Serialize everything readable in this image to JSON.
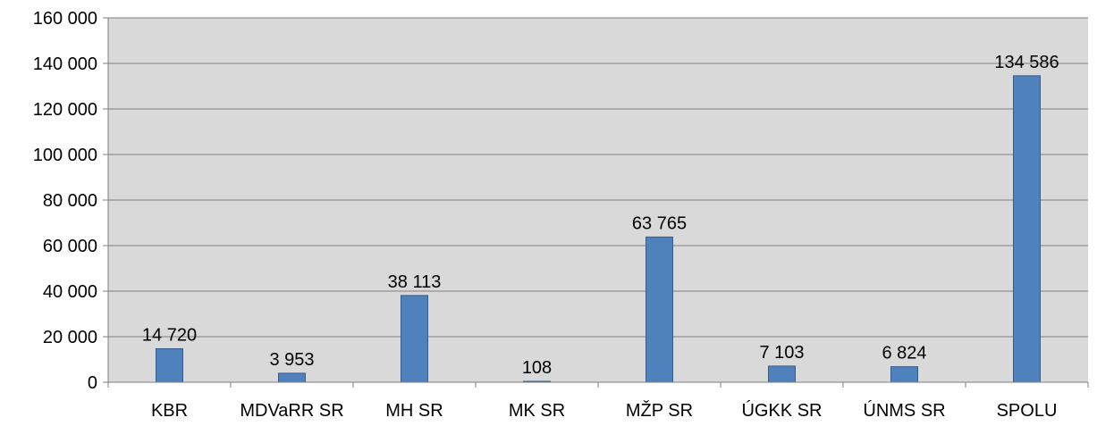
{
  "chart_data": {
    "type": "bar",
    "categories": [
      "KBR",
      "MDVaRR SR",
      "MH SR",
      "MK SR",
      "MŽP SR",
      "ÚGKK SR",
      "ÚNMS SR",
      "SPOLU"
    ],
    "values": [
      14720,
      3953,
      38113,
      108,
      63765,
      7103,
      6824,
      134586
    ],
    "data_labels": [
      "14 720",
      "3 953",
      "38 113",
      "108",
      "63 765",
      "7 103",
      "6 824",
      "134 586"
    ],
    "title": "",
    "xlabel": "",
    "ylabel": "",
    "ylim": [
      0,
      160000
    ],
    "yticks": [
      0,
      20000,
      40000,
      60000,
      80000,
      100000,
      120000,
      140000,
      160000
    ],
    "ytick_labels": [
      "0",
      "20 000",
      "40 000",
      "60 000",
      "80 000",
      "100 000",
      "120 000",
      "140 000",
      "160 000"
    ],
    "grid": true,
    "legend": "none",
    "colors": {
      "bar_fill": "#4f81bd",
      "bar_stroke": "#385d8a",
      "plot_background": "#d9d9d9",
      "gridline": "#7f7f7f",
      "axis": "#7f7f7f"
    }
  }
}
